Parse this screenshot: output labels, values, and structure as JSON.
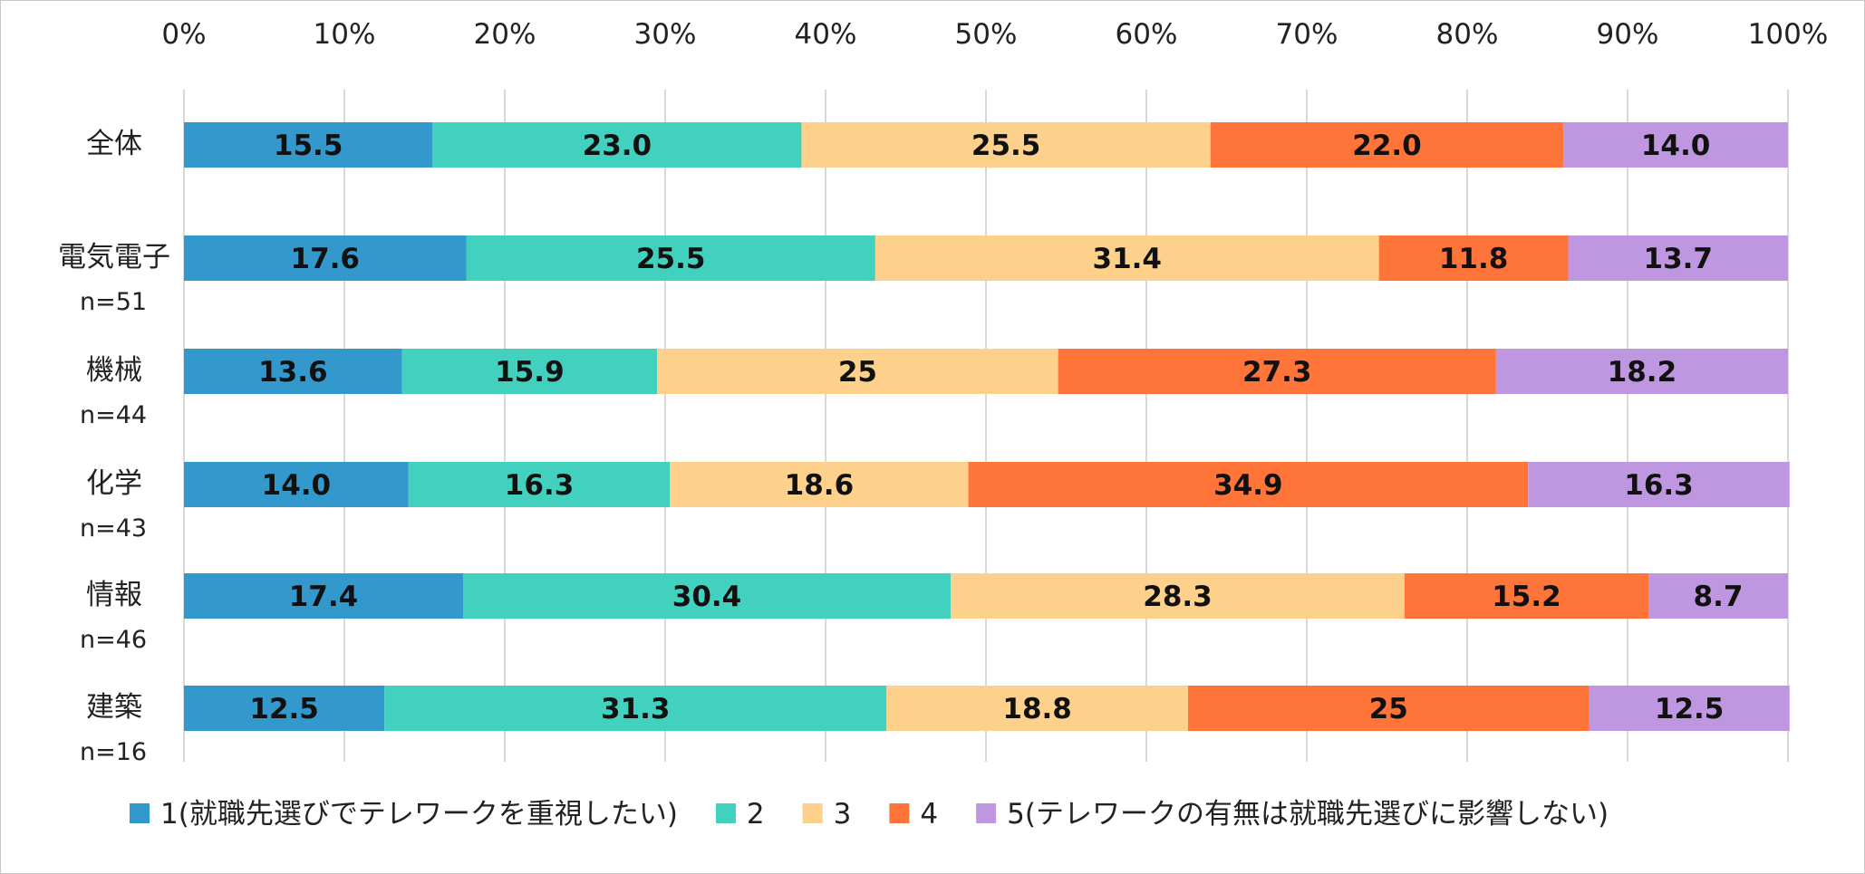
{
  "chart_data": {
    "type": "bar",
    "orientation": "horizontal",
    "stacked": "percent",
    "categories": [
      {
        "label": "全体",
        "n": ""
      },
      {
        "label": "電気電子",
        "n": "n=51"
      },
      {
        "label": "機械",
        "n": "n=44"
      },
      {
        "label": "化学",
        "n": "n=43"
      },
      {
        "label": "情報",
        "n": "n=46"
      },
      {
        "label": "建築",
        "n": "n=16"
      }
    ],
    "series": [
      {
        "name": "1(就職先選びでテレワークを重視したい)",
        "color": "#3399cc",
        "values": [
          15.5,
          17.6,
          13.6,
          14.0,
          17.4,
          12.5
        ],
        "labels": [
          "15.5",
          "17.6",
          "13.6",
          "14.0",
          "17.4",
          "12.5"
        ]
      },
      {
        "name": "2",
        "color": "#43d1bf",
        "values": [
          23.0,
          25.5,
          15.9,
          16.3,
          30.4,
          31.3
        ],
        "labels": [
          "23.0",
          "25.5",
          "15.9",
          "16.3",
          "30.4",
          "31.3"
        ]
      },
      {
        "name": "3",
        "color": "#fdd18b",
        "values": [
          25.5,
          31.4,
          25,
          18.6,
          28.3,
          18.8
        ],
        "labels": [
          "25.5",
          "31.4",
          "25",
          "18.6",
          "28.3",
          "18.8"
        ]
      },
      {
        "name": "4",
        "color": "#ff7438",
        "values": [
          22.0,
          11.8,
          27.3,
          34.9,
          15.2,
          25
        ],
        "labels": [
          "22.0",
          "11.8",
          "27.3",
          "34.9",
          "15.2",
          "25"
        ]
      },
      {
        "name": "5(テレワークの有無は就職先選びに影響しない)",
        "color": "#bf96e0",
        "values": [
          14.0,
          13.7,
          18.2,
          16.3,
          8.7,
          12.5
        ],
        "labels": [
          "14.0",
          "13.7",
          "18.2",
          "16.3",
          "8.7",
          "12.5"
        ]
      }
    ],
    "x_ticks": [
      "0%",
      "10%",
      "20%",
      "30%",
      "40%",
      "50%",
      "60%",
      "70%",
      "80%",
      "90%",
      "100%"
    ],
    "xlim": [
      0,
      100
    ],
    "grid": true,
    "legend": "bottom",
    "title": "",
    "xlabel": "",
    "ylabel": ""
  }
}
